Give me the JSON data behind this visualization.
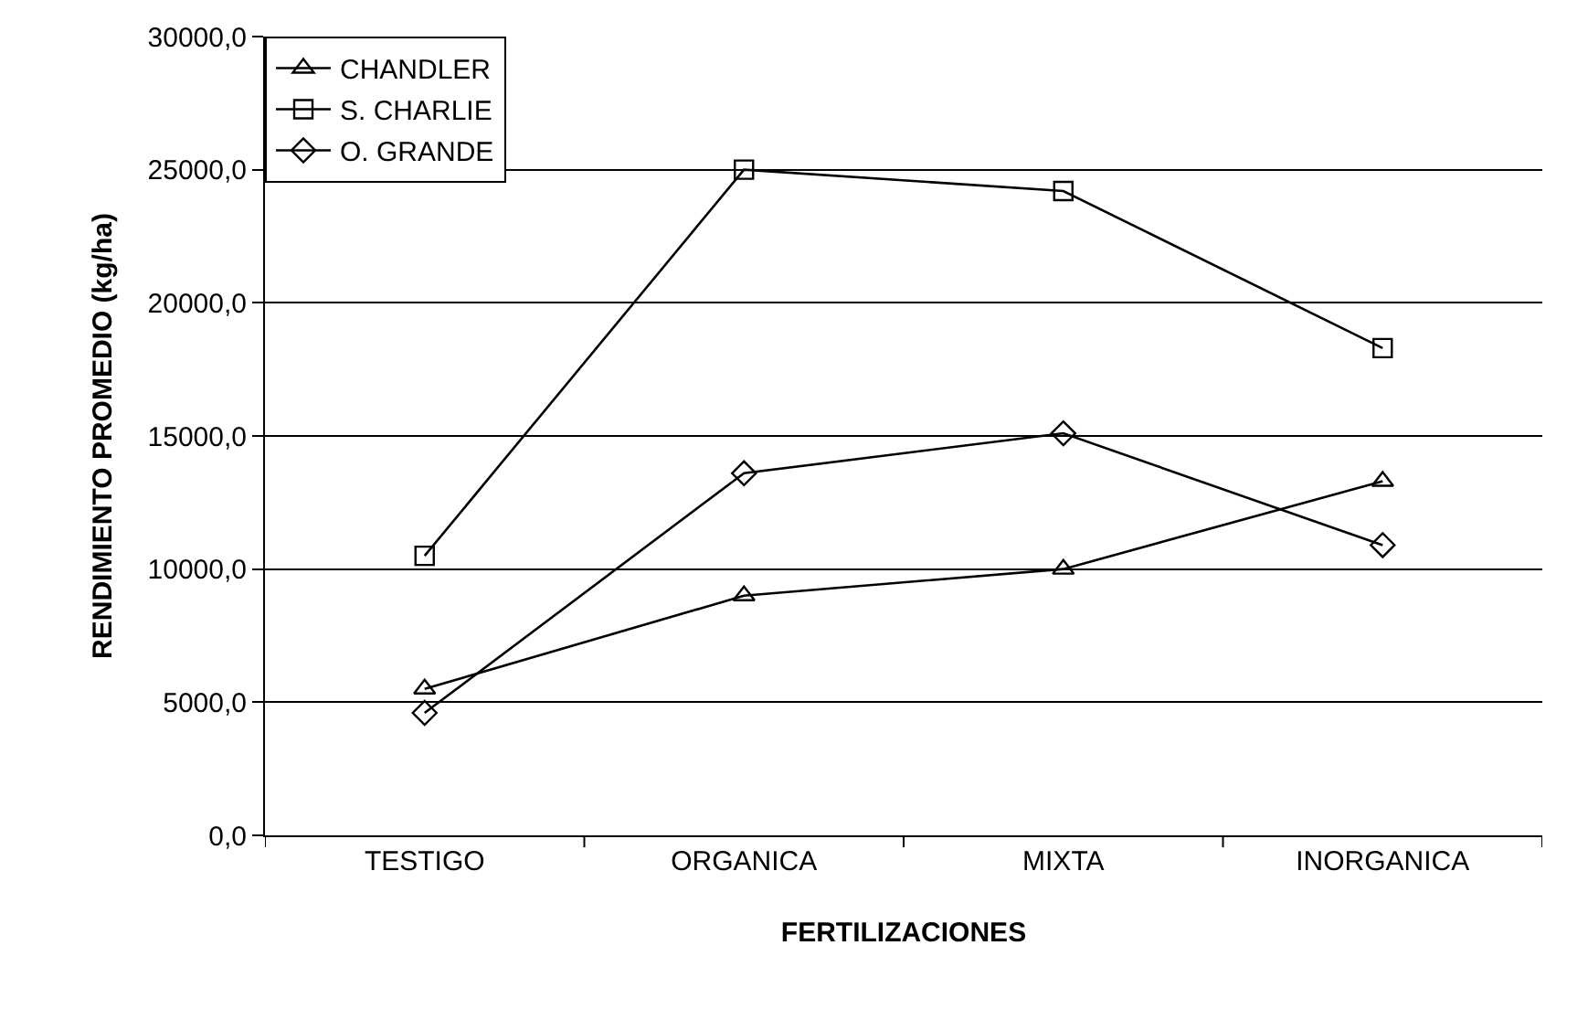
{
  "chart_data": {
    "type": "line",
    "xlabel": "FERTILIZACIONES",
    "ylabel": "RENDIMIENTO PROMEDIO (kg/ha)",
    "categories": [
      "TESTIGO",
      "ORGANICA",
      "MIXTA",
      "INORGANICA"
    ],
    "series": [
      {
        "name": "CHANDLER",
        "color": "#000000",
        "marker": "triangle",
        "values": [
          5500,
          9000,
          10000,
          13300
        ]
      },
      {
        "name": "S. CHARLIE",
        "color": "#000000",
        "marker": "square",
        "values": [
          10500,
          25000,
          24200,
          18300
        ]
      },
      {
        "name": "O. GRANDE",
        "color": "#000000",
        "marker": "diamond",
        "values": [
          4600,
          13600,
          15100,
          10900
        ]
      }
    ],
    "ylim": [
      0,
      30000
    ],
    "yticks": [
      {
        "value": 0,
        "label": "0,0"
      },
      {
        "value": 5000,
        "label": "5000,0"
      },
      {
        "value": 10000,
        "label": "10000,0"
      },
      {
        "value": 15000,
        "label": "15000,0"
      },
      {
        "value": 20000,
        "label": "20000,0"
      },
      {
        "value": 25000,
        "label": "25000,0"
      },
      {
        "value": 30000,
        "label": "30000,0"
      }
    ],
    "grid": "y",
    "legend": "top left",
    "line_style": "solid"
  }
}
